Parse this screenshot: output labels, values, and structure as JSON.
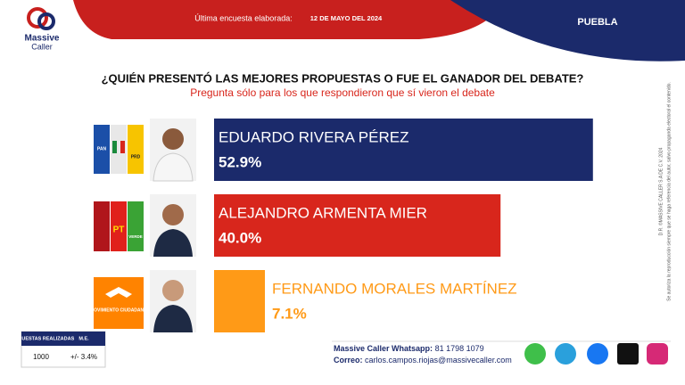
{
  "header": {
    "last_poll_label": "Última encuesta elaborada:",
    "date": "12 DE MAYO DEL 2024",
    "state": "PUEBLA"
  },
  "logo": {
    "line1": "Massive",
    "line2": "Caller"
  },
  "chart_data": {
    "type": "bar",
    "orientation": "horizontal",
    "title": "¿QUIÉN PRESENTÓ LAS MEJORES PROPUESTAS O FUE EL GANADOR DEL DEBATE?",
    "subtitle": "Pregunta sólo para los que respondieron que sí vieron el debate",
    "categories": [
      "EDUARDO RIVERA PÉREZ",
      "ALEJANDRO ARMENTA MIER",
      "FERNANDO MORALES MARTÍNEZ"
    ],
    "values": [
      52.9,
      40.0,
      7.1
    ],
    "value_labels": [
      "52.9%",
      "40.0%",
      "7.1%"
    ],
    "colors": [
      "#1b2a6b",
      "#d8261c",
      "#ff9a17"
    ]
  },
  "party_logos": {
    "pan": "PAN",
    "prd": "PRD",
    "pt": "PT",
    "verde": "VERDE",
    "mc": "MOVIMIENTO CIUDADANO"
  },
  "stats_table": {
    "headers": [
      "ENCUESTAS REALIZADAS",
      "M.E."
    ],
    "row": [
      "1000",
      "+/- 3.4%"
    ]
  },
  "contact": {
    "whatsapp_label": "Massive Caller Whatsapp:",
    "whatsapp": "81 1798 1079",
    "email_label": "Correo:",
    "email": "carlos.campos.riojas@massivecaller.com"
  },
  "legal": [
    "D.R. ©MASSIVE CALLER S.A DE C.V. 2024",
    "Se autoriza la reproducción siempre que se haga referencia del autor, salvo propaganda electoral el contenido."
  ]
}
